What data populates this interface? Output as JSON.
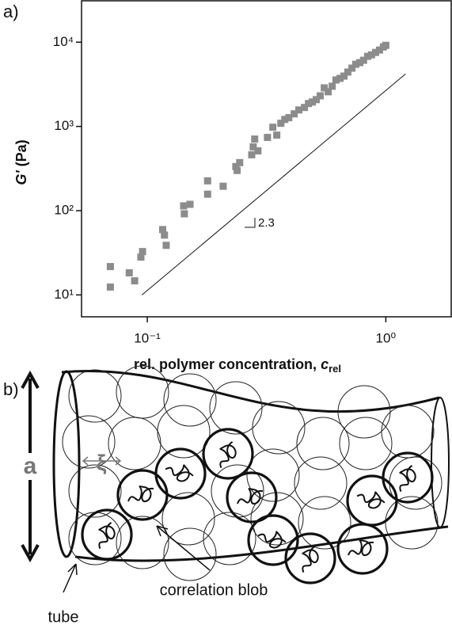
{
  "panel_a": "a)",
  "chart_data": {
    "type": "scatter",
    "ylabel": [
      "G'",
      " (Pa)"
    ],
    "xlabel": [
      "rel. polymer concentration, ",
      "c",
      "rel"
    ],
    "xscale": "log",
    "yscale": "log",
    "color": "#8c8c8c",
    "xlim": [
      0.053,
      1.88
    ],
    "ylim": [
      5.5,
      31000
    ],
    "xticks": [
      {
        "value": 0.1,
        "label": "10⁻¹"
      },
      {
        "value": 1,
        "label": "10⁰"
      }
    ],
    "yticks": [
      {
        "value": 10,
        "label": "10¹"
      },
      {
        "value": 100,
        "label": "10²"
      },
      {
        "value": 1000,
        "label": "10³"
      },
      {
        "value": 10000,
        "label": "10⁴"
      }
    ],
    "x": [
      0.07,
      0.07,
      0.084,
      0.0885,
      0.094,
      0.0955,
      0.116,
      0.118,
      0.12,
      0.142,
      0.143,
      0.151,
      0.179,
      0.179,
      0.208,
      0.235,
      0.238,
      0.244,
      0.274,
      0.278,
      0.282,
      0.291,
      0.319,
      0.336,
      0.349,
      0.363,
      0.377,
      0.392,
      0.413,
      0.432,
      0.456,
      0.474,
      0.492,
      0.511,
      0.531,
      0.552,
      0.573,
      0.596,
      0.618,
      0.643,
      0.668,
      0.693,
      0.721,
      0.748,
      0.778,
      0.807,
      0.839,
      0.871,
      0.906,
      0.941,
      0.977,
      1.0
    ],
    "values": [
      21.7,
      12.4,
      18.3,
      14.7,
      28.1,
      32.7,
      59.7,
      51.3,
      38.8,
      114,
      91.8,
      119,
      157,
      226,
      195,
      334,
      300,
      372,
      461,
      572,
      708,
      513,
      740,
      979,
      789,
      1090,
      1210,
      1270,
      1410,
      1570,
      1680,
      1870,
      1950,
      2080,
      2310,
      2870,
      2580,
      3000,
      3560,
      3720,
      3960,
      4420,
      4920,
      5470,
      5720,
      6100,
      6790,
      7080,
      7560,
      8070,
      8790,
      9180
    ],
    "guide": {
      "x": [
        0.095,
        1.21
      ],
      "values": [
        10,
        4200
      ],
      "label": "2.3"
    }
  },
  "panel_b": {
    "label": "b)",
    "size": "a",
    "blob_size": "ξ",
    "blob": "correlation blob",
    "tube": "tube"
  }
}
